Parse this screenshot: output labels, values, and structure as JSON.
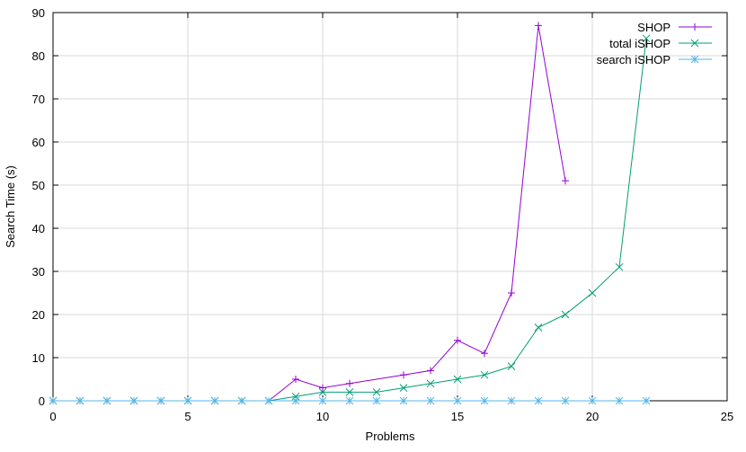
{
  "chart_data": {
    "type": "line",
    "title": "",
    "xlabel": "Problems",
    "ylabel": "Search Time (s)",
    "xlim": [
      0,
      25
    ],
    "ylim": [
      0,
      90
    ],
    "xticks": [
      0,
      5,
      10,
      15,
      20,
      25
    ],
    "yticks": [
      0,
      10,
      20,
      30,
      40,
      50,
      60,
      70,
      80,
      90
    ],
    "grid": true,
    "legend_position": "top-right",
    "series": [
      {
        "name": "SHOP",
        "color": "#9400d3",
        "marker": "plus",
        "x": [
          0,
          1,
          2,
          3,
          4,
          5,
          6,
          7,
          8,
          9,
          10,
          11,
          13,
          14,
          15,
          16,
          17,
          18,
          19
        ],
        "y": [
          0,
          0,
          0,
          0,
          0,
          0,
          0,
          0,
          0,
          5,
          3,
          4,
          6,
          7,
          14,
          11,
          25,
          87,
          51
        ]
      },
      {
        "name": "total iSHOP",
        "color": "#009e73",
        "marker": "cross",
        "x": [
          0,
          1,
          2,
          3,
          4,
          5,
          6,
          7,
          8,
          9,
          10,
          11,
          12,
          13,
          14,
          15,
          16,
          17,
          18,
          19,
          20,
          21,
          22
        ],
        "y": [
          0,
          0,
          0,
          0,
          0,
          0,
          0,
          0,
          0,
          1,
          2,
          2,
          2,
          3,
          4,
          5,
          6,
          8,
          17,
          20,
          25,
          31,
          84
        ]
      },
      {
        "name": "search iSHOP",
        "color": "#56b4e9",
        "marker": "star",
        "x": [
          0,
          1,
          2,
          3,
          4,
          5,
          6,
          7,
          8,
          9,
          10,
          11,
          12,
          13,
          14,
          15,
          16,
          17,
          18,
          19,
          20,
          21,
          22
        ],
        "y": [
          0,
          0,
          0,
          0,
          0,
          0,
          0,
          0,
          0,
          0,
          0,
          0,
          0,
          0,
          0,
          0,
          0,
          0,
          0,
          0,
          0,
          0,
          0
        ]
      }
    ]
  }
}
